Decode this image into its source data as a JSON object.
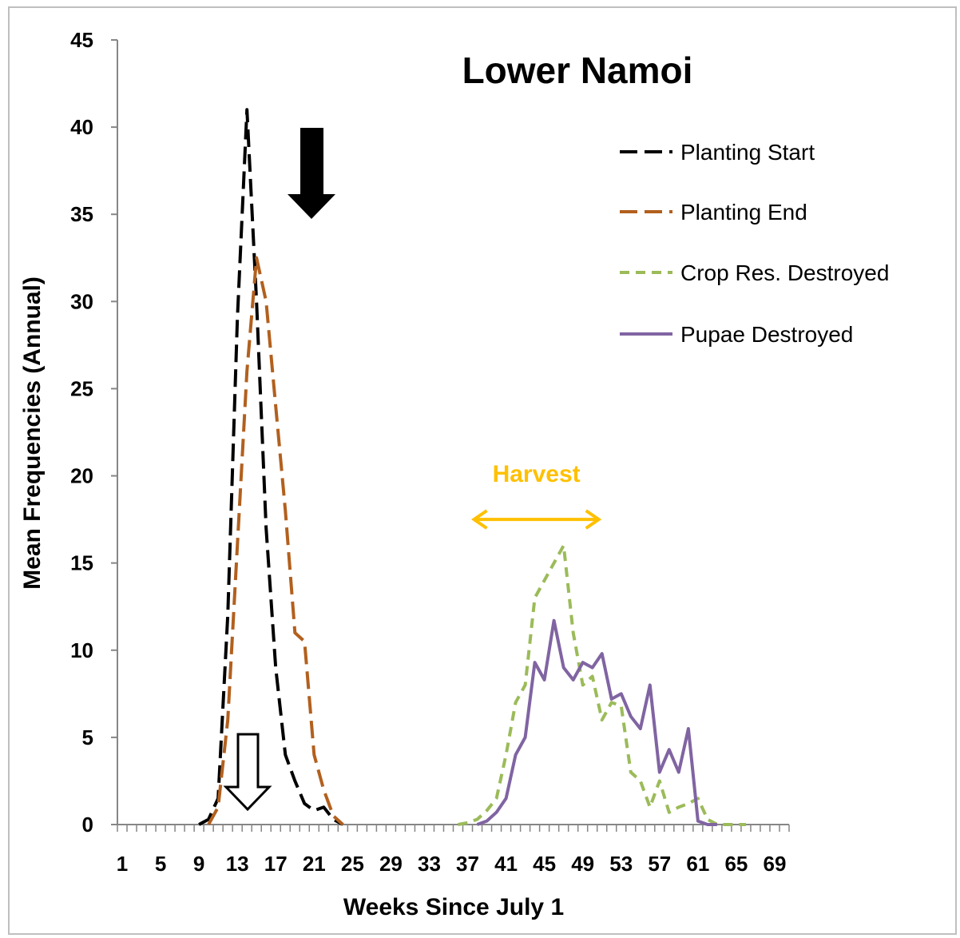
{
  "chart_data": {
    "type": "line",
    "title": "Lower Namoi",
    "xlabel": "Weeks Since July 1",
    "ylabel": "Mean Frequencies (Annual)",
    "xlim": [
      1,
      70
    ],
    "ylim": [
      0,
      45
    ],
    "xticks": [
      1,
      5,
      9,
      13,
      17,
      21,
      25,
      29,
      33,
      37,
      41,
      45,
      49,
      53,
      57,
      61,
      65,
      69
    ],
    "yticks": [
      0,
      5,
      10,
      15,
      20,
      25,
      30,
      35,
      40,
      45
    ],
    "grid": false,
    "legend_position": "top-right",
    "series": [
      {
        "name": "Planting Start",
        "color": "#000000",
        "style": "long-dash",
        "points": [
          [
            9,
            0
          ],
          [
            10,
            0.3
          ],
          [
            11,
            1.5
          ],
          [
            12,
            12
          ],
          [
            13,
            29
          ],
          [
            14,
            41
          ],
          [
            15,
            30
          ],
          [
            16,
            17
          ],
          [
            17,
            9
          ],
          [
            18,
            4
          ],
          [
            19,
            2.5
          ],
          [
            20,
            1.2
          ],
          [
            21,
            0.8
          ],
          [
            22,
            1
          ],
          [
            23,
            0.3
          ],
          [
            24,
            0
          ]
        ]
      },
      {
        "name": "Planting End",
        "color": "#b2601e",
        "style": "long-dash",
        "points": [
          [
            10,
            0
          ],
          [
            11,
            1
          ],
          [
            12,
            6
          ],
          [
            13,
            16
          ],
          [
            14,
            26
          ],
          [
            15,
            32.5
          ],
          [
            16,
            30
          ],
          [
            17,
            24
          ],
          [
            18,
            18
          ],
          [
            19,
            11
          ],
          [
            20,
            10.5
          ],
          [
            21,
            4
          ],
          [
            22,
            2
          ],
          [
            23,
            0.5
          ],
          [
            24,
            0
          ]
        ]
      },
      {
        "name": "Crop Res. Destroyed",
        "color": "#9bbb59",
        "style": "short-dash",
        "points": [
          [
            36,
            0
          ],
          [
            37,
            0.1
          ],
          [
            38,
            0.3
          ],
          [
            39,
            0.8
          ],
          [
            40,
            1.5
          ],
          [
            41,
            4
          ],
          [
            42,
            7
          ],
          [
            43,
            8
          ],
          [
            44,
            13
          ],
          [
            45,
            14
          ],
          [
            46,
            15
          ],
          [
            47,
            16
          ],
          [
            48,
            11
          ],
          [
            49,
            8
          ],
          [
            50,
            8.5
          ],
          [
            51,
            6
          ],
          [
            52,
            7
          ],
          [
            53,
            6.8
          ],
          [
            54,
            3
          ],
          [
            55,
            2.5
          ],
          [
            56,
            1
          ],
          [
            57,
            2.5
          ],
          [
            58,
            0.7
          ],
          [
            59,
            1
          ],
          [
            60,
            1.2
          ],
          [
            61,
            1.5
          ],
          [
            62,
            0.3
          ],
          [
            63,
            0
          ],
          [
            66,
            0
          ]
        ]
      },
      {
        "name": "Pupae Destroyed",
        "color": "#8064a2",
        "style": "solid",
        "points": [
          [
            38,
            0
          ],
          [
            39,
            0.2
          ],
          [
            40,
            0.7
          ],
          [
            41,
            1.5
          ],
          [
            42,
            4
          ],
          [
            43,
            5
          ],
          [
            44,
            9.3
          ],
          [
            45,
            8.3
          ],
          [
            46,
            11.7
          ],
          [
            47,
            9
          ],
          [
            48,
            8.3
          ],
          [
            49,
            9.3
          ],
          [
            50,
            9
          ],
          [
            51,
            9.8
          ],
          [
            52,
            7.2
          ],
          [
            53,
            7.5
          ],
          [
            54,
            6.2
          ],
          [
            55,
            5.5
          ],
          [
            56,
            8
          ],
          [
            57,
            3
          ],
          [
            58,
            4.3
          ],
          [
            59,
            3
          ],
          [
            60,
            5.5
          ],
          [
            61,
            0.2
          ],
          [
            62,
            0
          ],
          [
            63,
            0
          ]
        ]
      }
    ],
    "annotations": {
      "harvest_label": "Harvest",
      "harvest_color": "#ffc000",
      "harvest_range": [
        37,
        49
      ],
      "harvest_level": 17.5,
      "arrow_filled_color": "#000000",
      "arrow_outline_color": "#000000"
    }
  }
}
